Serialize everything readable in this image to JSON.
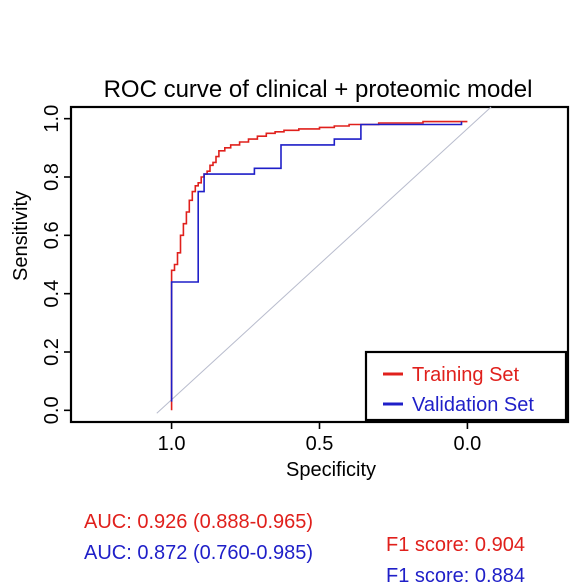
{
  "chart_data": {
    "type": "line",
    "title": "ROC curve of clinical + proteomic model",
    "xlabel": "Specificity",
    "ylabel": "Sensitivity",
    "x_reversed": true,
    "xlim": [
      1.34,
      -0.34
    ],
    "ylim": [
      -0.04,
      1.04
    ],
    "xticks": [
      1.0,
      0.5,
      0.0
    ],
    "xtick_labels": [
      "1.0",
      "0.5",
      "0.0"
    ],
    "yticks": [
      0.0,
      0.2,
      0.4,
      0.6,
      0.8,
      1.0
    ],
    "ytick_labels": [
      "0.0",
      "0.2",
      "0.4",
      "0.6",
      "0.8",
      "1.0"
    ],
    "grid": false,
    "legend_position": "bottom-right",
    "reference_line": {
      "x": [
        1.05,
        -0.08
      ],
      "y": [
        -0.01,
        1.04
      ],
      "color": "#b8bccd"
    },
    "series": [
      {
        "name": "Training Set",
        "color": "#e0201c",
        "x": [
          1.0,
          1.0,
          0.99,
          0.99,
          0.98,
          0.98,
          0.97,
          0.97,
          0.96,
          0.96,
          0.95,
          0.95,
          0.94,
          0.94,
          0.93,
          0.93,
          0.92,
          0.92,
          0.91,
          0.91,
          0.9,
          0.9,
          0.89,
          0.89,
          0.88,
          0.88,
          0.87,
          0.87,
          0.86,
          0.86,
          0.85,
          0.85,
          0.84,
          0.84,
          0.82,
          0.82,
          0.8,
          0.8,
          0.77,
          0.77,
          0.74,
          0.74,
          0.71,
          0.71,
          0.68,
          0.68,
          0.65,
          0.65,
          0.62,
          0.62,
          0.57,
          0.57,
          0.5,
          0.5,
          0.45,
          0.45,
          0.4,
          0.4,
          0.3,
          0.3,
          0.15,
          0.15,
          0.0
        ],
        "y": [
          0.0,
          0.48,
          0.48,
          0.5,
          0.5,
          0.54,
          0.54,
          0.6,
          0.6,
          0.64,
          0.64,
          0.68,
          0.68,
          0.72,
          0.72,
          0.75,
          0.75,
          0.77,
          0.77,
          0.78,
          0.78,
          0.8,
          0.8,
          0.81,
          0.81,
          0.82,
          0.82,
          0.84,
          0.84,
          0.85,
          0.85,
          0.87,
          0.87,
          0.89,
          0.89,
          0.9,
          0.9,
          0.91,
          0.91,
          0.92,
          0.92,
          0.93,
          0.93,
          0.94,
          0.94,
          0.95,
          0.95,
          0.955,
          0.955,
          0.96,
          0.96,
          0.965,
          0.965,
          0.97,
          0.97,
          0.975,
          0.975,
          0.98,
          0.98,
          0.985,
          0.985,
          0.99,
          0.99
        ]
      },
      {
        "name": "Validation Set",
        "color": "#1f1fc8",
        "x": [
          1.0,
          1.0,
          0.91,
          0.91,
          0.89,
          0.89,
          0.72,
          0.72,
          0.63,
          0.63,
          0.45,
          0.45,
          0.36,
          0.36,
          0.02,
          0.02
        ],
        "y": [
          0.03,
          0.44,
          0.44,
          0.75,
          0.75,
          0.81,
          0.81,
          0.83,
          0.83,
          0.91,
          0.91,
          0.93,
          0.93,
          0.98,
          0.98,
          0.99
        ]
      }
    ]
  },
  "stats": {
    "training_auc": "AUC: 0.926 (0.888-0.965)",
    "training_f1": "F1 score: 0.904",
    "validation_auc": "AUC: 0.872 (0.760-0.985)",
    "validation_f1": "F1 score: 0.884"
  }
}
